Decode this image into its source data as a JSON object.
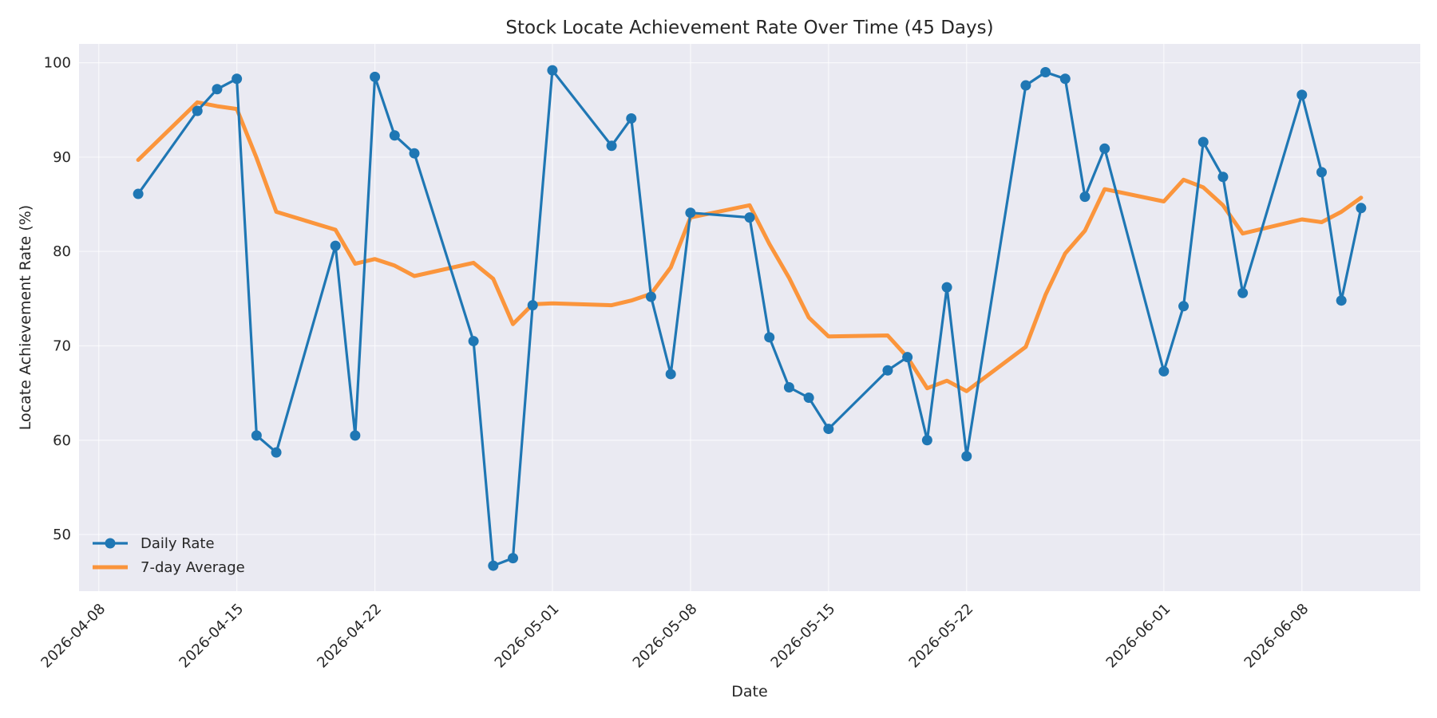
{
  "chart_data": {
    "type": "line",
    "title": "Stock Locate Achievement Rate Over Time (45 Days)",
    "xlabel": "Date",
    "ylabel": "Locate Achievement Rate (%)",
    "xlim": [
      "2026-04-07",
      "2026-06-14"
    ],
    "ylim": [
      44,
      102
    ],
    "x_ticks": [
      "2026-04-08",
      "2026-04-15",
      "2026-04-22",
      "2026-05-01",
      "2026-05-08",
      "2026-05-15",
      "2026-05-22",
      "2026-06-01",
      "2026-06-08"
    ],
    "y_ticks": [
      50,
      60,
      70,
      80,
      90,
      100
    ],
    "grid": true,
    "legend_position": "bottom-left",
    "x": [
      "2026-04-10",
      "2026-04-13",
      "2026-04-14",
      "2026-04-15",
      "2026-04-16",
      "2026-04-17",
      "2026-04-20",
      "2026-04-21",
      "2026-04-22",
      "2026-04-23",
      "2026-04-24",
      "2026-04-27",
      "2026-04-28",
      "2026-04-29",
      "2026-04-30",
      "2026-05-01",
      "2026-05-04",
      "2026-05-05",
      "2026-05-06",
      "2026-05-07",
      "2026-05-08",
      "2026-05-11",
      "2026-05-12",
      "2026-05-13",
      "2026-05-14",
      "2026-05-15",
      "2026-05-18",
      "2026-05-19",
      "2026-05-20",
      "2026-05-21",
      "2026-05-22",
      "2026-05-25",
      "2026-05-26",
      "2026-05-27",
      "2026-05-28",
      "2026-05-29",
      "2026-06-01",
      "2026-06-02",
      "2026-06-03",
      "2026-06-04",
      "2026-06-05",
      "2026-06-08",
      "2026-06-09",
      "2026-06-10",
      "2026-06-11"
    ],
    "series": [
      {
        "name": "Daily Rate",
        "color": "#1f77b4",
        "marker": "circle",
        "values": [
          86.1,
          94.9,
          97.2,
          98.3,
          60.5,
          58.7,
          80.6,
          60.5,
          98.5,
          92.3,
          90.4,
          70.5,
          46.7,
          47.5,
          74.3,
          99.2,
          91.2,
          94.1,
          75.2,
          67.0,
          84.1,
          83.6,
          70.9,
          65.6,
          64.5,
          61.2,
          67.4,
          68.8,
          60.0,
          76.2,
          58.3,
          97.6,
          99.0,
          98.3,
          85.8,
          90.9,
          67.3,
          74.2,
          91.6,
          87.9,
          75.6,
          96.6,
          88.4,
          74.8,
          84.6
        ]
      },
      {
        "name": "7-day Average",
        "color": "#ff7f0e",
        "marker": "none",
        "values": [
          89.7,
          95.8,
          95.4,
          95.1,
          89.9,
          84.2,
          82.3,
          78.7,
          79.2,
          78.5,
          77.4,
          78.8,
          77.1,
          72.3,
          74.4,
          74.5,
          74.3,
          74.8,
          75.5,
          78.3,
          83.6,
          84.9,
          80.8,
          77.2,
          73.0,
          71.0,
          71.1,
          68.8,
          65.5,
          66.3,
          65.2,
          69.9,
          75.4,
          79.8,
          82.2,
          86.6,
          85.3,
          87.6,
          86.8,
          84.9,
          81.9,
          83.4,
          83.1,
          84.2,
          85.7
        ]
      }
    ]
  }
}
